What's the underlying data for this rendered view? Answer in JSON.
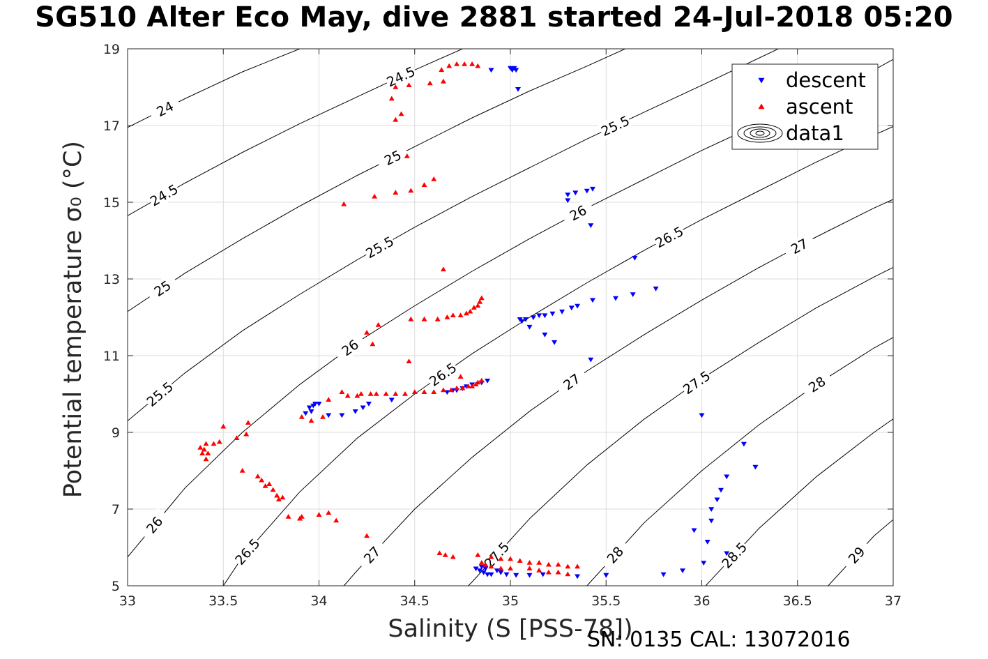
{
  "chart_data": {
    "type": "scatter",
    "title": "SG510 Alter Eco May, dive 2881 started 24-Jul-2018 05:20",
    "xlabel": "Salinity (S [PSS-78])",
    "ylabel": "Potential temperature σ₀ (°C)",
    "footer": "SN: 0135  CAL: 13072016",
    "xlim": [
      33,
      37
    ],
    "ylim": [
      5,
      19
    ],
    "x_ticks": [
      "33",
      "33.5",
      "34",
      "34.5",
      "35",
      "35.5",
      "36",
      "36.5",
      "37"
    ],
    "y_ticks": [
      "5",
      "7",
      "9",
      "11",
      "13",
      "15",
      "17",
      "19"
    ],
    "grid": true,
    "legend_position": "top-right",
    "legend": [
      "descent",
      "ascent",
      "data1"
    ],
    "contour_labels": [
      "24",
      "24.5",
      "25",
      "25.5",
      "26",
      "26.5",
      "27",
      "27.5",
      "28",
      "28.5",
      "29"
    ],
    "contours": [
      {
        "level": 24,
        "points": [
          [
            33.0,
            16.95
          ],
          [
            33.3,
            17.7
          ],
          [
            33.6,
            18.4
          ],
          [
            33.9,
            19.0
          ]
        ]
      },
      {
        "level": 24.5,
        "points": [
          [
            33.0,
            14.65
          ],
          [
            33.3,
            15.5
          ],
          [
            33.6,
            16.3
          ],
          [
            33.9,
            17.05
          ],
          [
            34.2,
            17.75
          ],
          [
            34.5,
            18.45
          ],
          [
            34.75,
            19.0
          ]
        ]
      },
      {
        "level": 25,
        "points": [
          [
            33.0,
            12.15
          ],
          [
            33.3,
            13.15
          ],
          [
            33.6,
            14.05
          ],
          [
            33.9,
            14.9
          ],
          [
            34.2,
            15.7
          ],
          [
            34.5,
            16.45
          ],
          [
            34.8,
            17.2
          ],
          [
            35.1,
            17.9
          ],
          [
            35.4,
            18.55
          ],
          [
            35.6,
            19.0
          ]
        ]
      },
      {
        "level": 25.5,
        "points": [
          [
            33.0,
            9.3
          ],
          [
            33.3,
            10.55
          ],
          [
            33.6,
            11.65
          ],
          [
            33.9,
            12.6
          ],
          [
            34.2,
            13.5
          ],
          [
            34.5,
            14.35
          ],
          [
            34.8,
            15.15
          ],
          [
            35.1,
            15.9
          ],
          [
            35.4,
            16.65
          ],
          [
            35.7,
            17.35
          ],
          [
            36.0,
            18.05
          ],
          [
            36.4,
            19.0
          ]
        ]
      },
      {
        "level": 26,
        "points": [
          [
            33.0,
            5.75
          ],
          [
            33.3,
            7.55
          ],
          [
            33.6,
            9.0
          ],
          [
            33.9,
            10.25
          ],
          [
            34.2,
            11.35
          ],
          [
            34.5,
            12.3
          ],
          [
            34.8,
            13.2
          ],
          [
            35.1,
            14.05
          ],
          [
            35.4,
            14.85
          ],
          [
            35.7,
            15.6
          ],
          [
            36.0,
            16.35
          ],
          [
            36.3,
            17.05
          ],
          [
            36.6,
            17.75
          ],
          [
            36.9,
            18.45
          ],
          [
            37.1,
            19.0
          ]
        ]
      },
      {
        "level": 26.5,
        "points": [
          [
            33.5,
            5.0
          ],
          [
            33.6,
            5.75
          ],
          [
            33.9,
            7.45
          ],
          [
            34.2,
            8.85
          ],
          [
            34.5,
            10.0
          ],
          [
            34.8,
            11.05
          ],
          [
            35.1,
            12.0
          ],
          [
            35.4,
            12.9
          ],
          [
            35.7,
            13.75
          ],
          [
            36.0,
            14.55
          ],
          [
            36.3,
            15.3
          ],
          [
            36.6,
            16.05
          ],
          [
            36.9,
            16.75
          ],
          [
            37.1,
            17.2
          ]
        ]
      },
      {
        "level": 27,
        "points": [
          [
            34.13,
            5.0
          ],
          [
            34.2,
            5.4
          ],
          [
            34.5,
            7.0
          ],
          [
            34.8,
            8.35
          ],
          [
            35.1,
            9.55
          ],
          [
            35.4,
            10.6
          ],
          [
            35.7,
            11.55
          ],
          [
            36.0,
            12.45
          ],
          [
            36.3,
            13.3
          ],
          [
            36.6,
            14.1
          ],
          [
            36.9,
            14.85
          ],
          [
            37.1,
            15.3
          ]
        ]
      },
      {
        "level": 27.5,
        "points": [
          [
            34.78,
            5.0
          ],
          [
            34.8,
            5.1
          ],
          [
            35.1,
            6.75
          ],
          [
            35.4,
            8.15
          ],
          [
            35.7,
            9.35
          ],
          [
            36.0,
            10.4
          ],
          [
            36.3,
            11.35
          ],
          [
            36.6,
            12.25
          ],
          [
            36.9,
            13.05
          ],
          [
            37.1,
            13.55
          ]
        ]
      },
      {
        "level": 28,
        "points": [
          [
            35.4,
            5.0
          ],
          [
            35.7,
            6.65
          ],
          [
            36.0,
            8.0
          ],
          [
            36.3,
            9.2
          ],
          [
            36.6,
            10.25
          ],
          [
            36.9,
            11.2
          ],
          [
            37.1,
            11.75
          ]
        ]
      },
      {
        "level": 28.5,
        "points": [
          [
            36.02,
            5.0
          ],
          [
            36.3,
            6.5
          ],
          [
            36.6,
            7.85
          ],
          [
            36.9,
            9.0
          ],
          [
            37.1,
            9.7
          ]
        ]
      },
      {
        "level": 29,
        "points": [
          [
            36.66,
            5.0
          ],
          [
            36.9,
            6.3
          ],
          [
            37.1,
            7.15
          ]
        ]
      }
    ],
    "series": [
      {
        "name": "descent",
        "marker": "triangle-down",
        "color": "#0000ff",
        "points": [
          [
            34.9,
            18.45
          ],
          [
            35.0,
            18.5
          ],
          [
            35.02,
            18.5
          ],
          [
            35.03,
            18.45
          ],
          [
            35.01,
            18.45
          ],
          [
            35.04,
            17.95
          ],
          [
            35.3,
            15.2
          ],
          [
            35.3,
            15.05
          ],
          [
            35.34,
            15.25
          ],
          [
            35.4,
            15.3
          ],
          [
            35.43,
            15.35
          ],
          [
            35.42,
            14.4
          ],
          [
            35.65,
            13.55
          ],
          [
            35.64,
            12.6
          ],
          [
            35.76,
            12.75
          ],
          [
            35.55,
            12.5
          ],
          [
            35.43,
            12.45
          ],
          [
            35.35,
            12.3
          ],
          [
            35.32,
            12.25
          ],
          [
            35.27,
            12.15
          ],
          [
            35.22,
            12.1
          ],
          [
            35.18,
            12.05
          ],
          [
            35.15,
            12.05
          ],
          [
            35.12,
            12.0
          ],
          [
            35.08,
            11.95
          ],
          [
            35.06,
            11.9
          ],
          [
            35.05,
            11.95
          ],
          [
            35.1,
            11.75
          ],
          [
            35.18,
            11.55
          ],
          [
            35.23,
            11.35
          ],
          [
            35.42,
            10.9
          ],
          [
            34.88,
            10.35
          ],
          [
            34.85,
            10.3
          ],
          [
            34.8,
            10.25
          ],
          [
            34.77,
            10.2
          ],
          [
            34.75,
            10.15
          ],
          [
            34.72,
            10.1
          ],
          [
            34.7,
            10.1
          ],
          [
            34.67,
            10.05
          ],
          [
            34.38,
            9.85
          ],
          [
            34.26,
            9.75
          ],
          [
            34.23,
            9.65
          ],
          [
            34.19,
            9.55
          ],
          [
            34.12,
            9.45
          ],
          [
            34.05,
            9.45
          ],
          [
            34.0,
            9.75
          ],
          [
            33.98,
            9.75
          ],
          [
            33.97,
            9.7
          ],
          [
            33.95,
            9.65
          ],
          [
            33.93,
            9.5
          ],
          [
            33.96,
            9.55
          ],
          [
            34.82,
            5.45
          ],
          [
            34.84,
            5.4
          ],
          [
            34.86,
            5.35
          ],
          [
            34.88,
            5.3
          ],
          [
            34.9,
            5.3
          ],
          [
            34.85,
            5.5
          ],
          [
            34.87,
            5.45
          ],
          [
            34.93,
            5.4
          ],
          [
            34.95,
            5.35
          ],
          [
            34.98,
            5.3
          ],
          [
            35.03,
            5.28
          ],
          [
            35.1,
            5.28
          ],
          [
            35.17,
            5.3
          ],
          [
            35.35,
            5.25
          ],
          [
            35.5,
            5.28
          ],
          [
            35.8,
            5.3
          ],
          [
            35.9,
            5.4
          ],
          [
            36.01,
            5.6
          ],
          [
            36.03,
            6.15
          ],
          [
            35.96,
            6.45
          ],
          [
            36.05,
            6.7
          ],
          [
            36.05,
            7.0
          ],
          [
            36.08,
            7.25
          ],
          [
            36.1,
            7.5
          ],
          [
            36.13,
            7.85
          ],
          [
            36.13,
            5.85
          ],
          [
            36.0,
            9.45
          ],
          [
            36.22,
            8.7
          ],
          [
            36.28,
            8.1
          ]
        ]
      },
      {
        "name": "ascent",
        "marker": "triangle-up",
        "color": "#ff0000",
        "points": [
          [
            34.64,
            18.45
          ],
          [
            34.68,
            18.55
          ],
          [
            34.72,
            18.6
          ],
          [
            34.76,
            18.6
          ],
          [
            34.8,
            18.6
          ],
          [
            34.83,
            18.55
          ],
          [
            34.65,
            18.15
          ],
          [
            34.58,
            18.1
          ],
          [
            34.47,
            18.05
          ],
          [
            34.4,
            18.0
          ],
          [
            34.38,
            17.7
          ],
          [
            34.4,
            17.15
          ],
          [
            34.43,
            17.3
          ],
          [
            34.46,
            16.2
          ],
          [
            34.55,
            15.45
          ],
          [
            34.6,
            15.6
          ],
          [
            34.48,
            15.3
          ],
          [
            34.4,
            15.25
          ],
          [
            34.29,
            15.15
          ],
          [
            34.13,
            14.95
          ],
          [
            34.65,
            13.25
          ],
          [
            34.85,
            12.5
          ],
          [
            34.84,
            12.4
          ],
          [
            34.83,
            12.3
          ],
          [
            34.81,
            12.25
          ],
          [
            34.79,
            12.15
          ],
          [
            34.77,
            12.1
          ],
          [
            34.74,
            12.05
          ],
          [
            34.7,
            12.05
          ],
          [
            34.67,
            12.0
          ],
          [
            34.62,
            11.95
          ],
          [
            34.55,
            11.95
          ],
          [
            34.48,
            11.95
          ],
          [
            34.31,
            11.8
          ],
          [
            34.25,
            11.6
          ],
          [
            34.28,
            11.3
          ],
          [
            34.47,
            10.85
          ],
          [
            34.85,
            10.35
          ],
          [
            34.83,
            10.3
          ],
          [
            34.82,
            10.25
          ],
          [
            34.8,
            10.2
          ],
          [
            34.78,
            10.2
          ],
          [
            34.75,
            10.15
          ],
          [
            34.72,
            10.15
          ],
          [
            34.69,
            10.1
          ],
          [
            34.65,
            10.1
          ],
          [
            34.6,
            10.05
          ],
          [
            34.55,
            10.05
          ],
          [
            34.5,
            10.05
          ],
          [
            34.45,
            10.0
          ],
          [
            34.4,
            10.0
          ],
          [
            34.35,
            10.0
          ],
          [
            34.3,
            10.0
          ],
          [
            34.27,
            10.0
          ],
          [
            34.22,
            10.0
          ],
          [
            34.2,
            9.95
          ],
          [
            34.15,
            9.95
          ],
          [
            34.12,
            10.05
          ],
          [
            34.05,
            9.85
          ],
          [
            34.02,
            9.4
          ],
          [
            33.96,
            9.3
          ],
          [
            33.91,
            9.4
          ],
          [
            34.74,
            10.45
          ],
          [
            33.63,
            9.25
          ],
          [
            33.62,
            8.95
          ],
          [
            33.57,
            8.85
          ],
          [
            33.5,
            9.15
          ],
          [
            33.48,
            8.75
          ],
          [
            33.45,
            8.7
          ],
          [
            33.42,
            8.45
          ],
          [
            33.41,
            8.3
          ],
          [
            33.4,
            8.55
          ],
          [
            33.38,
            8.6
          ],
          [
            33.39,
            8.45
          ],
          [
            33.41,
            8.7
          ],
          [
            33.6,
            8.0
          ],
          [
            33.68,
            7.85
          ],
          [
            33.7,
            7.75
          ],
          [
            33.72,
            7.6
          ],
          [
            33.74,
            7.65
          ],
          [
            33.76,
            7.5
          ],
          [
            33.78,
            7.35
          ],
          [
            33.79,
            7.25
          ],
          [
            33.81,
            7.3
          ],
          [
            33.84,
            6.8
          ],
          [
            33.9,
            6.75
          ],
          [
            33.91,
            6.8
          ],
          [
            34.0,
            6.85
          ],
          [
            34.05,
            6.9
          ],
          [
            34.09,
            6.7
          ],
          [
            34.25,
            6.3
          ],
          [
            34.63,
            5.85
          ],
          [
            34.66,
            5.8
          ],
          [
            34.7,
            5.75
          ],
          [
            34.83,
            5.8
          ],
          [
            34.9,
            5.75
          ],
          [
            34.95,
            5.7
          ],
          [
            35.0,
            5.7
          ],
          [
            35.05,
            5.65
          ],
          [
            35.1,
            5.6
          ],
          [
            35.15,
            5.6
          ],
          [
            35.2,
            5.55
          ],
          [
            35.25,
            5.55
          ],
          [
            35.3,
            5.5
          ],
          [
            35.35,
            5.5
          ],
          [
            34.87,
            5.55
          ],
          [
            34.9,
            5.5
          ],
          [
            34.95,
            5.45
          ],
          [
            35.0,
            5.45
          ],
          [
            35.1,
            5.45
          ],
          [
            35.15,
            5.4
          ],
          [
            35.2,
            5.35
          ],
          [
            35.25,
            5.35
          ],
          [
            35.3,
            5.3
          ],
          [
            34.85,
            5.6
          ]
        ]
      }
    ]
  }
}
